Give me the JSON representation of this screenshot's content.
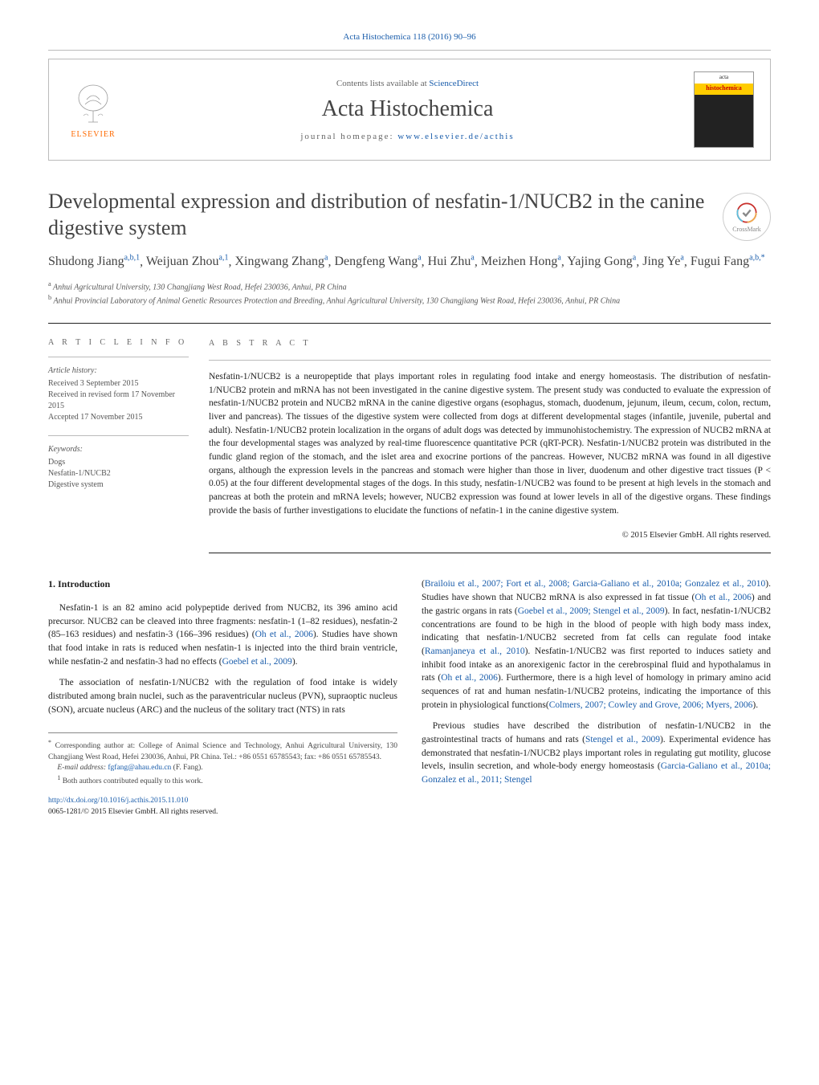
{
  "header": {
    "citation": "Acta Histochemica 118 (2016) 90–96",
    "citation_link_text": "Acta Histochemica 118 (2016) 90–96"
  },
  "topbox": {
    "elsevier_label": "ELSEVIER",
    "contents_prefix": "Contents lists available at ",
    "contents_link": "ScienceDirect",
    "journal": "Acta Histochemica",
    "homepage_prefix": "journal homepage: ",
    "homepage_link": "www.elsevier.de/acthis",
    "cover_top": "acta",
    "cover_histo": "histochemica"
  },
  "title": "Developmental expression and distribution of nesfatin-1/NUCB2 in the canine digestive system",
  "crossmark": "CrossMark",
  "authors_html": "Shudong Jiang|a,b,1|, Weijuan Zhou|a,1|, Xingwang Zhang|a|, Dengfeng Wang|a|, Hui Zhu|a|, Meizhen Hong|a|, Yajing Gong|a|, Jing Ye|a|, Fugui Fang|a,b,*|",
  "authors": [
    {
      "name": "Shudong Jiang",
      "sup": "a,b,1"
    },
    {
      "name": "Weijuan Zhou",
      "sup": "a,1"
    },
    {
      "name": "Xingwang Zhang",
      "sup": "a"
    },
    {
      "name": "Dengfeng Wang",
      "sup": "a"
    },
    {
      "name": "Hui Zhu",
      "sup": "a"
    },
    {
      "name": "Meizhen Hong",
      "sup": "a"
    },
    {
      "name": "Yajing Gong",
      "sup": "a"
    },
    {
      "name": "Jing Ye",
      "sup": "a"
    },
    {
      "name": "Fugui Fang",
      "sup": "a,b,",
      "star": "*"
    }
  ],
  "affiliations": {
    "a": "Anhui Agricultural University, 130 Changjiang West Road, Hefei 230036, Anhui, PR China",
    "b": "Anhui Provincial Laboratory of Animal Genetic Resources Protection and Breeding, Anhui Agricultural University, 130 Changjiang West Road, Hefei 230036, Anhui, PR China"
  },
  "article_info": {
    "heading": "A R T I C L E   I N F O",
    "history_head": "Article history:",
    "received": "Received 3 September 2015",
    "revised": "Received in revised form 17 November 2015",
    "accepted": "Accepted 17 November 2015",
    "keywords_head": "Keywords:",
    "kw1": "Dogs",
    "kw2": "Nesfatin-1/NUCB2",
    "kw3": "Digestive system"
  },
  "abstract": {
    "heading": "A B S T R A C T",
    "text": "Nesfatin-1/NUCB2 is a neuropeptide that plays important roles in regulating food intake and energy homeostasis. The distribution of nesfatin-1/NUCB2 protein and mRNA has not been investigated in the canine digestive system. The present study was conducted to evaluate the expression of nesfatin-1/NUCB2 protein and NUCB2 mRNA in the canine digestive organs (esophagus, stomach, duodenum, jejunum, ileum, cecum, colon, rectum, liver and pancreas). The tissues of the digestive system were collected from dogs at different developmental stages (infantile, juvenile, pubertal and adult). Nesfatin-1/NUCB2 protein localization in the organs of adult dogs was detected by immunohistochemistry. The expression of NUCB2 mRNA at the four developmental stages was analyzed by real-time fluorescence quantitative PCR (qRT-PCR). Nesfatin-1/NUCB2 protein was distributed in the fundic gland region of the stomach, and the islet area and exocrine portions of the pancreas. However, NUCB2 mRNA was found in all digestive organs, although the expression levels in the pancreas and stomach were higher than those in liver, duodenum and other digestive tract tissues (P < 0.05) at the four different developmental stages of the dogs. In this study, nesfatin-1/NUCB2 was found to be present at high levels in the stomach and pancreas at both the protein and mRNA levels; however, NUCB2 expression was found at lower levels in all of the digestive organs. These findings provide the basis of further investigations to elucidate the functions of nefatin-1 in the canine digestive system.",
    "copyright": "© 2015 Elsevier GmbH. All rights reserved."
  },
  "body": {
    "intro_head": "1. Introduction",
    "p1_a": "Nesfatin-1 is an 82 amino acid polypeptide derived from NUCB2, its 396 amino acid precursor. NUCB2 can be cleaved into three fragments: nesfatin-1 (1–82 residues), nesfatin-2 (85–163 residues) and nesfatin-3 (166–396 residues) (",
    "p1_link1": "Oh et al., 2006",
    "p1_b": "). Studies have shown that food intake in rats is reduced when nesfatin-1 is injected into the third brain ventricle, while nesfatin-2 and nesfatin-3 had no effects (",
    "p1_link2": "Goebel et al., 2009",
    "p1_c": ").",
    "p2": "The association of nesfatin-1/NUCB2 with the regulation of food intake is widely distributed among brain nuclei, such as the paraventricular nucleus (PVN), supraoptic nucleus (SON), arcuate nucleus (ARC) and the nucleus of the solitary tract (NTS) in rats",
    "p3_a_link": "Brailoiu et al., 2007; Fort et al., 2008; Garcia-Galiano et al., 2010a; Gonzalez et al., 2010",
    "p3_b": "). Studies have shown that NUCB2 mRNA is also expressed in fat tissue (",
    "p3_link2": "Oh et al., 2006",
    "p3_c": ") and the gastric organs in rats (",
    "p3_link3": "Goebel et al., 2009; Stengel et al., 2009",
    "p3_d": "). In fact, nesfatin-1/NUCB2 concentrations are found to be high in the blood of people with high body mass index, indicating that nesfatin-1/NUCB2 secreted from fat cells can regulate food intake (",
    "p3_link4": "Ramanjaneya et al., 2010",
    "p3_e": "). Nesfatin-1/NUCB2 was first reported to induces satiety and inhibit food intake as an anorexigenic factor in the cerebrospinal fluid and hypothalamus in rats (",
    "p3_link5": "Oh et al., 2006",
    "p3_f": "). Furthermore, there is a high level of homology in primary amino acid sequences of rat and human nesfatin-1/NUCB2 proteins, indicating the importance of this protein in physiological functions(",
    "p3_link6": "Colmers, 2007; Cowley and Grove, 2006; Myers, 2006",
    "p3_g": ").",
    "p4_a": "Previous studies have described the distribution of nesfatin-1/NUCB2 in the gastrointestinal tracts of humans and rats (",
    "p4_link1": "Stengel et al., 2009",
    "p4_b": "). Experimental evidence has demonstrated that nesfatin-1/NUCB2 plays important roles in regulating gut motility, glucose levels, insulin secretion, and whole-body energy homeostasis (",
    "p4_link2": "Garcia-Galiano et al., 2010a; Gonzalez et al., 2011; Stengel"
  },
  "footnotes": {
    "corr_star": "*",
    "corr": "Corresponding author at: College of Animal Science and Technology, Anhui Agricultural University, 130 Changjiang West Road, Hefei 230036, Anhui, PR China. Tel.: +86 0551 65785543; fax: +86 0551 65785543.",
    "email_label": "E-mail address: ",
    "email": "fgfang@ahau.edu.cn",
    "email_suffix": " (F. Fang).",
    "note1_sup": "1",
    "note1": "Both authors contributed equally to this work.",
    "doi": "http://dx.doi.org/10.1016/j.acthis.2015.11.010",
    "issn": "0065-1281/© 2015 Elsevier GmbH. All rights reserved."
  },
  "colors": {
    "link": "#1a5dab",
    "orange": "#ff6a00",
    "text": "#222222",
    "muted": "#666666",
    "rule": "#bbbbbb"
  }
}
